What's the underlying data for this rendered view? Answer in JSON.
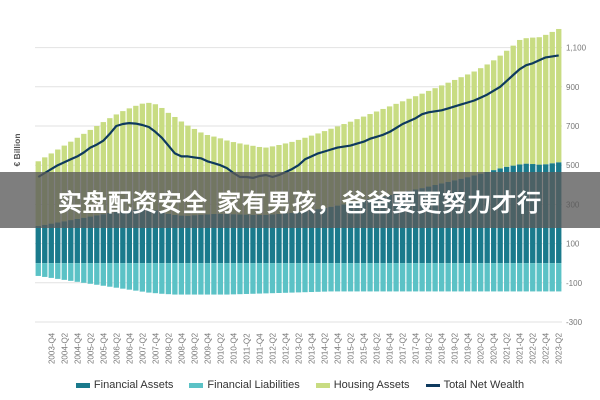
{
  "chart_data": {
    "type": "area",
    "ylabel": "€ Billion",
    "ylim": [
      -300,
      1200
    ],
    "yticks": [
      -300,
      -100,
      100,
      300,
      500,
      700,
      900,
      1100
    ],
    "ytick_labels": [
      "-300",
      "-100",
      "100",
      "300",
      "500",
      "700",
      "900",
      "1,100"
    ],
    "x_start": "2003-Q2",
    "x_end": "2023-Q2",
    "xtick_labels": [
      "2003-Q4",
      "2004-Q2",
      "2004-Q4",
      "2005-Q2",
      "2005-Q4",
      "2006-Q2",
      "2006-Q4",
      "2007-Q2",
      "2007-Q4",
      "2008-Q2",
      "2008-Q4",
      "2009-Q2",
      "2009-Q4",
      "2010-Q2",
      "2010-Q4",
      "2011-Q2",
      "2011-Q4",
      "2012-Q2",
      "2012-Q4",
      "2013-Q2",
      "2013-Q4",
      "2014-Q2",
      "2014-Q4",
      "2015-Q2",
      "2015-Q4",
      "2016-Q2",
      "2016-Q4",
      "2017-Q2",
      "2017-Q4",
      "2018-Q2",
      "2018-Q4",
      "2019-Q2",
      "2019-Q4",
      "2020-Q2",
      "2020-Q4",
      "2021-Q2",
      "2021-Q4",
      "2022-Q2",
      "2022-Q4",
      "2023-Q2"
    ],
    "grid": true,
    "legend_position": "bottom",
    "series": [
      {
        "name": "Financial Assets",
        "color": "#1a7a8c",
        "values": [
          190,
          196,
          202,
          208,
          214,
          220,
          226,
          232,
          238,
          244,
          250,
          256,
          261,
          266,
          270,
          273,
          276,
          275,
          270,
          262,
          252,
          246,
          243,
          242,
          245,
          247,
          249,
          251,
          252,
          251,
          250,
          249,
          248,
          247,
          246,
          247,
          249,
          251,
          254,
          257,
          261,
          266,
          271,
          276,
          282,
          288,
          294,
          300,
          306,
          313,
          320,
          327,
          334,
          341,
          348,
          355,
          362,
          369,
          376,
          383,
          391,
          399,
          407,
          415,
          423,
          431,
          439,
          448,
          457,
          466,
          475,
          484,
          492,
          498,
          504,
          508,
          506,
          503,
          505,
          510,
          515
        ]
      },
      {
        "name": "Financial Liabilities",
        "color": "#5bc2c6",
        "values": [
          -65,
          -70,
          -75,
          -80,
          -85,
          -90,
          -95,
          -100,
          -105,
          -110,
          -115,
          -120,
          -125,
          -130,
          -135,
          -140,
          -145,
          -150,
          -153,
          -156,
          -158,
          -160,
          -160,
          -160,
          -160,
          -160,
          -160,
          -160,
          -160,
          -160,
          -159,
          -158,
          -157,
          -156,
          -155,
          -154,
          -153,
          -152,
          -151,
          -150,
          -149,
          -148,
          -147,
          -146,
          -145,
          -144,
          -144,
          -144,
          -144,
          -144,
          -144,
          -144,
          -144,
          -144,
          -144,
          -144,
          -144,
          -144,
          -144,
          -144,
          -144,
          -144,
          -144,
          -144,
          -144,
          -144,
          -144,
          -144,
          -144,
          -144,
          -144,
          -144,
          -144,
          -144,
          -144,
          -144,
          -144,
          -144,
          -144,
          -144,
          -144
        ]
      },
      {
        "name": "Housing Assets",
        "color": "#c8dc82",
        "values": [
          330,
          344,
          358,
          372,
          386,
          400,
          414,
          428,
          442,
          456,
          470,
          484,
          498,
          510,
          520,
          530,
          538,
          543,
          541,
          530,
          515,
          500,
          480,
          460,
          440,
          420,
          405,
          395,
          385,
          375,
          368,
          362,
          357,
          352,
          347,
          343,
          347,
          352,
          357,
          362,
          368,
          374,
          380,
          386,
          392,
          398,
          404,
          410,
          416,
          422,
          428,
          434,
          440,
          446,
          452,
          458,
          464,
          470,
          476,
          482,
          488,
          494,
          500,
          506,
          512,
          518,
          524,
          530,
          538,
          548,
          560,
          575,
          592,
          612,
          635,
          640,
          645,
          650,
          660,
          670,
          680
        ]
      },
      {
        "name": "Total Net Wealth",
        "color": "#0e3a5e",
        "values": [
          440,
          460,
          480,
          500,
          515,
          530,
          545,
          565,
          590,
          605,
          625,
          660,
          700,
          710,
          715,
          712,
          705,
          695,
          670,
          640,
          600,
          560,
          545,
          545,
          540,
          535,
          520,
          510,
          500,
          485,
          460,
          440,
          440,
          435,
          445,
          450,
          440,
          450,
          465,
          480,
          500,
          530,
          545,
          560,
          570,
          580,
          590,
          595,
          600,
          610,
          620,
          635,
          645,
          655,
          670,
          690,
          710,
          725,
          740,
          760,
          770,
          775,
          780,
          790,
          800,
          810,
          820,
          830,
          845,
          860,
          880,
          900,
          930,
          960,
          990,
          1010,
          1020,
          1035,
          1050,
          1055,
          1060
        ]
      }
    ]
  },
  "overlay_banner": "实盘配资安全 家有男孩，爸爸要更努力才行",
  "legend": [
    {
      "label": "Financial Assets",
      "color": "#1a7a8c"
    },
    {
      "label": "Financial Liabilities",
      "color": "#5bc2c6"
    },
    {
      "label": "Housing Assets",
      "color": "#c8dc82"
    },
    {
      "label": "Total Net Wealth",
      "color": "#0e3a5e"
    }
  ]
}
